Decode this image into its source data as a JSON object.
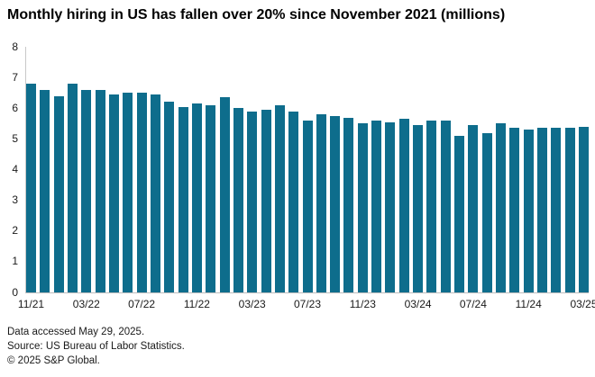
{
  "title": "Monthly hiring in US has fallen over 20% since November 2021 (millions)",
  "colors": {
    "bar": "#0e6d8c",
    "axis_line": "#c9c9c9",
    "text": "#1a1a1a"
  },
  "chart_data": {
    "type": "bar",
    "title": "Monthly hiring in US has fallen over 20% since November 2021 (millions)",
    "categories": [
      "11/21",
      "12/21",
      "01/22",
      "02/22",
      "03/22",
      "04/22",
      "05/22",
      "06/22",
      "07/22",
      "08/22",
      "09/22",
      "10/22",
      "11/22",
      "12/22",
      "01/23",
      "02/23",
      "03/23",
      "04/23",
      "05/23",
      "06/23",
      "07/23",
      "08/23",
      "09/23",
      "10/23",
      "11/23",
      "12/23",
      "01/24",
      "02/24",
      "03/24",
      "04/24",
      "05/24",
      "06/24",
      "07/24",
      "08/24",
      "09/24",
      "10/24",
      "11/24",
      "12/24",
      "01/25",
      "02/25",
      "03/25"
    ],
    "values": [
      6.8,
      6.6,
      6.4,
      6.8,
      6.6,
      6.6,
      6.45,
      6.5,
      6.5,
      6.45,
      6.2,
      6.05,
      6.15,
      6.1,
      6.35,
      6.0,
      5.9,
      5.95,
      6.1,
      5.9,
      5.6,
      5.8,
      5.75,
      5.7,
      5.5,
      5.6,
      5.55,
      5.65,
      5.45,
      5.6,
      5.6,
      5.1,
      5.45,
      5.2,
      5.5,
      5.35,
      5.3,
      5.35,
      5.35,
      5.35,
      5.4
    ],
    "xtick_labels": [
      "11/21",
      "03/22",
      "07/22",
      "11/22",
      "03/23",
      "07/23",
      "11/23",
      "03/24",
      "07/24",
      "11/24",
      "03/25"
    ],
    "xtick_every": 4,
    "xlabel": "",
    "ylabel": "",
    "ylim": [
      0,
      8
    ],
    "yticks": [
      0,
      1,
      2,
      3,
      4,
      5,
      6,
      7,
      8
    ],
    "grid": false,
    "legend_position": "none",
    "bar_color": "#0e6d8c"
  },
  "footer": {
    "lines": [
      "Data accessed May 29, 2025.",
      "Source: US Bureau of Labor Statistics.",
      "© 2025 S&P Global."
    ]
  }
}
